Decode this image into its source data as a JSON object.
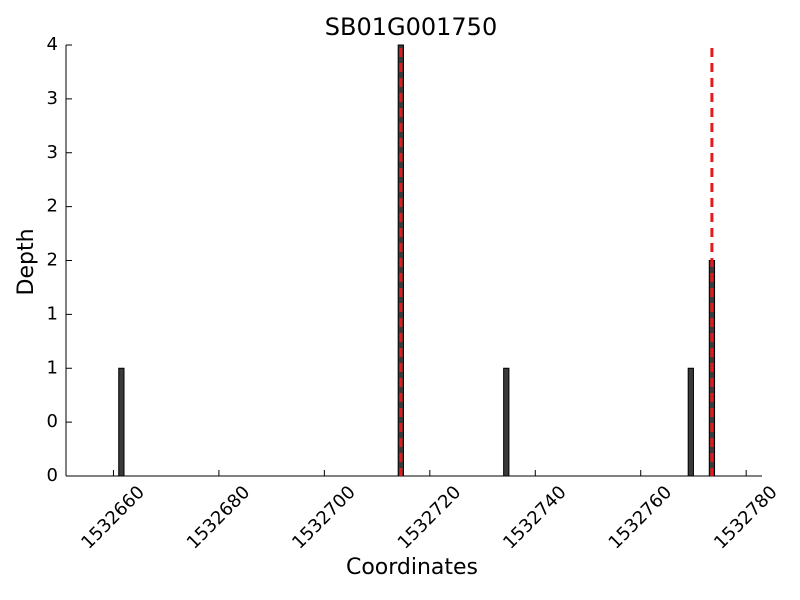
{
  "chart_data": {
    "type": "bar",
    "title": "SB01G001750",
    "xlabel": "Coordinates",
    "ylabel": "Depth",
    "x": [
      1532661.5,
      1532714.5,
      1532734.5,
      1532769.5,
      1532773.5
    ],
    "values": [
      1,
      4,
      1,
      1,
      2
    ],
    "color": "#3a3a3a",
    "vlines": [
      1532714.5,
      1532773.5
    ],
    "vline_color": "#e41a1c",
    "xlim": [
      1532651,
      1532783
    ],
    "xticks": [
      1532660,
      1532680,
      1532700,
      1532720,
      1532740,
      1532760,
      1532780
    ],
    "ylim": [
      0,
      4
    ],
    "yticks": [
      0,
      {
        "value": 0.5,
        "label": "0"
      },
      1,
      {
        "value": 1.5,
        "label": "1"
      },
      2,
      {
        "value": 2.5,
        "label": "2"
      },
      3,
      {
        "value": 3.5,
        "label": "3"
      },
      4
    ]
  }
}
